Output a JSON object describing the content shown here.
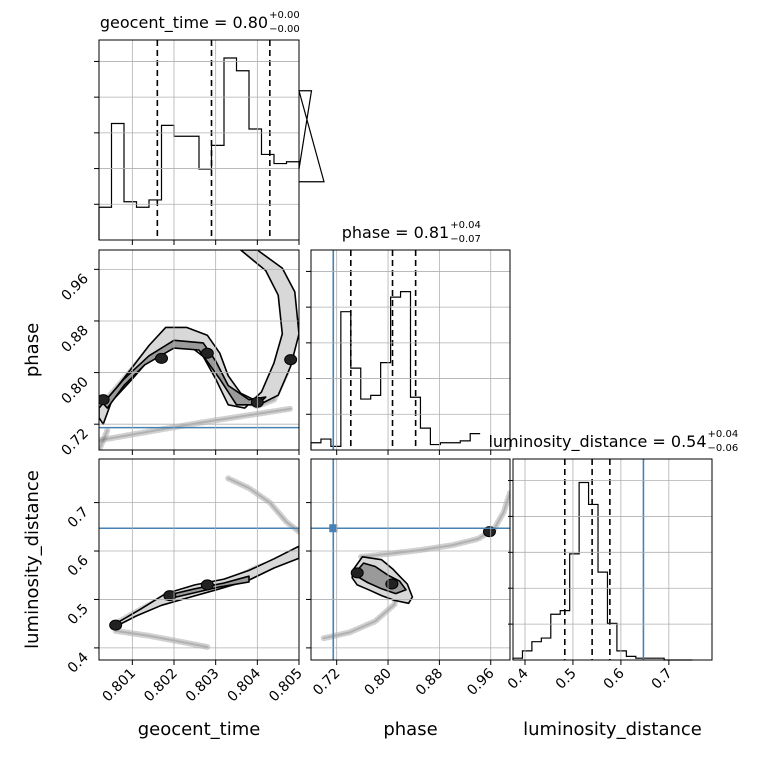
{
  "chart_data": {
    "type": "corner",
    "grid": true,
    "truth_color": "#4682b4",
    "params": [
      {
        "key": "geocent_time",
        "label": "geocent_time",
        "title_main": "geocent_time = 0.80",
        "title_sup": "+0.00",
        "title_sub": "−0.00",
        "range": [
          0.8002,
          0.805
        ],
        "ticks": [
          0.801,
          0.802,
          0.803,
          0.804,
          0.805
        ],
        "tick_labels": [
          "0.801",
          "0.802",
          "0.803",
          "0.804",
          "0.805"
        ],
        "quantiles": [
          0.8016,
          0.8029,
          0.8043
        ],
        "truth": null,
        "hist": {
          "edges_start": 0.8002,
          "bin_width": 0.0003,
          "counts": [
            0.18,
            0.64,
            0.21,
            0.18,
            0.22,
            0.63,
            0.57,
            0.57,
            0.39,
            0.52,
            1.0,
            0.93,
            0.61,
            0.47,
            0.42,
            0.43,
            0.39,
            0.82,
            0.32
          ],
          "ymax": 1.0
        }
      },
      {
        "key": "phase",
        "label": "phase",
        "title_main": "phase = 0.81",
        "title_sup": "+0.04",
        "title_sub": "−0.07",
        "range": [
          0.68,
          0.99
        ],
        "ticks": [
          0.72,
          0.8,
          0.88,
          0.96
        ],
        "tick_labels": [
          "0.72",
          "0.80",
          "0.88",
          "0.96"
        ],
        "quantiles": [
          0.742,
          0.807,
          0.843
        ],
        "truth": 0.7147,
        "hist": {
          "edges_start": 0.68,
          "bin_width": 0.0155,
          "counts": [
            0.04,
            0.06,
            0.02,
            0.76,
            0.45,
            0.28,
            0.3,
            0.48,
            0.84,
            0.87,
            0.29,
            0.12,
            0.03,
            0.04,
            0.04,
            0.05,
            0.09
          ],
          "ymax": 1.0
        }
      },
      {
        "key": "luminosity_distance",
        "label": "luminosity_distance",
        "title_main": "luminosity_distance = 0.54",
        "title_sup": "+0.04",
        "title_sub": "−0.06",
        "range": [
          0.375,
          0.79
        ],
        "ticks": [
          0.4,
          0.5,
          0.6,
          0.7
        ],
        "tick_labels": [
          "0.4",
          "0.5",
          "0.6",
          "0.7"
        ],
        "quantiles": [
          0.483,
          0.54,
          0.577
        ],
        "truth": 0.647,
        "hist": {
          "edges_start": 0.375,
          "bin_width": 0.0197,
          "counts": [
            0.01,
            0.05,
            0.1,
            0.12,
            0.25,
            0.27,
            0.58,
            0.97,
            0.85,
            0.48,
            0.2,
            0.05,
            0.02,
            0.01,
            0.01,
            0.01,
            0.0,
            0.0,
            0.0
          ],
          "ymax": 1.0
        }
      }
    ],
    "pairs": [
      {
        "x": "geocent_time",
        "y": "phase",
        "truth_x": null,
        "truth_y": 0.7147,
        "scatter_paths": [
          [
            [
              0.8002,
              0.745
            ],
            [
              0.8006,
              0.775
            ],
            [
              0.801,
              0.805
            ],
            [
              0.8014,
              0.836
            ],
            [
              0.8018,
              0.855
            ],
            [
              0.8022,
              0.862
            ],
            [
              0.8026,
              0.858
            ],
            [
              0.8029,
              0.835
            ],
            [
              0.8032,
              0.8
            ],
            [
              0.8036,
              0.76
            ],
            [
              0.804,
              0.748
            ],
            [
              0.8044,
              0.758
            ],
            [
              0.8047,
              0.8
            ],
            [
              0.8049,
              0.87
            ],
            [
              0.8047,
              0.928
            ],
            [
              0.8043,
              0.96
            ],
            [
              0.8038,
              0.985
            ]
          ],
          [
            [
              0.8002,
              0.695
            ],
            [
              0.801,
              0.704
            ],
            [
              0.8018,
              0.713
            ],
            [
              0.8026,
              0.722
            ],
            [
              0.8034,
              0.73
            ],
            [
              0.8042,
              0.738
            ],
            [
              0.8048,
              0.744
            ]
          ],
          [
            [
              0.8002,
              0.68
            ],
            [
              0.8003,
              0.695
            ],
            [
              0.8004,
              0.71
            ]
          ]
        ],
        "contour_outer": [
          [
            0.8002,
            0.745
          ],
          [
            0.8006,
            0.775
          ],
          [
            0.801,
            0.808
          ],
          [
            0.8014,
            0.842
          ],
          [
            0.8018,
            0.87
          ],
          [
            0.8023,
            0.87
          ],
          [
            0.8028,
            0.858
          ],
          [
            0.8031,
            0.83
          ],
          [
            0.8033,
            0.795
          ],
          [
            0.8036,
            0.768
          ],
          [
            0.8041,
            0.752
          ],
          [
            0.8045,
            0.765
          ],
          [
            0.8048,
            0.81
          ],
          [
            0.805,
            0.86
          ],
          [
            0.8049,
            0.925
          ],
          [
            0.8046,
            0.962
          ],
          [
            0.804,
            0.99
          ],
          [
            0.8036,
            0.99
          ],
          [
            0.8042,
            0.958
          ],
          [
            0.8045,
            0.92
          ],
          [
            0.8046,
            0.86
          ],
          [
            0.8044,
            0.815
          ],
          [
            0.8041,
            0.77
          ],
          [
            0.8037,
            0.745
          ],
          [
            0.8033,
            0.75
          ],
          [
            0.803,
            0.79
          ],
          [
            0.8027,
            0.825
          ],
          [
            0.8024,
            0.84
          ],
          [
            0.8018,
            0.84
          ],
          [
            0.8014,
            0.82
          ],
          [
            0.801,
            0.79
          ],
          [
            0.8005,
            0.755
          ],
          [
            0.8003,
            0.72
          ],
          [
            0.8002,
            0.73
          ]
        ],
        "contour_inner": [
          [
            0.8003,
            0.752
          ],
          [
            0.8008,
            0.79
          ],
          [
            0.8014,
            0.826
          ],
          [
            0.802,
            0.85
          ],
          [
            0.8027,
            0.846
          ],
          [
            0.803,
            0.818
          ],
          [
            0.8033,
            0.78
          ],
          [
            0.8038,
            0.758
          ],
          [
            0.8042,
            0.762
          ],
          [
            0.804,
            0.75
          ],
          [
            0.8035,
            0.75
          ],
          [
            0.8031,
            0.79
          ],
          [
            0.8026,
            0.835
          ],
          [
            0.802,
            0.838
          ],
          [
            0.8013,
            0.812
          ],
          [
            0.8008,
            0.78
          ],
          [
            0.8004,
            0.745
          ]
        ],
        "blob_points": [
          [
            0.8028,
            0.83
          ],
          [
            0.804,
            0.754
          ],
          [
            0.8017,
            0.822
          ],
          [
            0.8003,
            0.758
          ],
          [
            0.8048,
            0.82
          ]
        ]
      },
      {
        "x": "geocent_time",
        "y": "luminosity_distance",
        "truth_x": null,
        "truth_y": 0.647,
        "scatter_paths": [
          [
            [
              0.8006,
              0.45
            ],
            [
              0.801,
              0.47
            ],
            [
              0.8015,
              0.493
            ],
            [
              0.802,
              0.51
            ],
            [
              0.8025,
              0.52
            ],
            [
              0.803,
              0.532
            ],
            [
              0.8035,
              0.545
            ],
            [
              0.804,
              0.566
            ],
            [
              0.8045,
              0.58
            ],
            [
              0.805,
              0.6
            ]
          ],
          [
            [
              0.8033,
              0.75
            ],
            [
              0.8038,
              0.73
            ],
            [
              0.8043,
              0.7
            ],
            [
              0.8047,
              0.66
            ],
            [
              0.805,
              0.64
            ]
          ],
          [
            [
              0.8006,
              0.435
            ],
            [
              0.8014,
              0.425
            ],
            [
              0.8022,
              0.412
            ],
            [
              0.8028,
              0.402
            ]
          ]
        ],
        "contour_outer": [
          [
            0.8005,
            0.445
          ],
          [
            0.8012,
            0.48
          ],
          [
            0.8018,
            0.512
          ],
          [
            0.8025,
            0.53
          ],
          [
            0.8032,
            0.542
          ],
          [
            0.8038,
            0.56
          ],
          [
            0.8044,
            0.584
          ],
          [
            0.805,
            0.61
          ],
          [
            0.805,
            0.585
          ],
          [
            0.8044,
            0.565
          ],
          [
            0.8038,
            0.54
          ],
          [
            0.8031,
            0.522
          ],
          [
            0.8024,
            0.505
          ],
          [
            0.8017,
            0.488
          ],
          [
            0.8011,
            0.466
          ],
          [
            0.8005,
            0.44
          ]
        ],
        "contour_inner": [
          [
            0.8018,
            0.508
          ],
          [
            0.8025,
            0.522
          ],
          [
            0.8032,
            0.534
          ],
          [
            0.8038,
            0.548
          ],
          [
            0.8038,
            0.536
          ],
          [
            0.8031,
            0.526
          ],
          [
            0.8024,
            0.512
          ],
          [
            0.8018,
            0.5
          ]
        ],
        "blob_points": [
          [
            0.8006,
            0.447
          ],
          [
            0.8019,
            0.508
          ],
          [
            0.8028,
            0.53
          ]
        ]
      },
      {
        "x": "phase",
        "y": "luminosity_distance",
        "truth_x": 0.7147,
        "truth_y": 0.647,
        "scatter_paths": [
          [
            [
              0.758,
              0.588
            ],
            [
              0.8,
              0.594
            ],
            [
              0.85,
              0.602
            ],
            [
              0.9,
              0.612
            ],
            [
              0.94,
              0.625
            ],
            [
              0.965,
              0.645
            ],
            [
              0.98,
              0.68
            ],
            [
              0.99,
              0.72
            ]
          ],
          [
            [
              0.7,
              0.42
            ],
            [
              0.74,
              0.432
            ],
            [
              0.78,
              0.455
            ],
            [
              0.81,
              0.49
            ],
            [
              0.815,
              0.52
            ],
            [
              0.8,
              0.54
            ]
          ]
        ],
        "contour_outer": [
          [
            0.746,
            0.562
          ],
          [
            0.76,
            0.588
          ],
          [
            0.79,
            0.582
          ],
          [
            0.808,
            0.562
          ],
          [
            0.818,
            0.548
          ],
          [
            0.83,
            0.532
          ],
          [
            0.838,
            0.505
          ],
          [
            0.832,
            0.492
          ],
          [
            0.81,
            0.498
          ],
          [
            0.79,
            0.508
          ],
          [
            0.77,
            0.52
          ],
          [
            0.752,
            0.53
          ],
          [
            0.744,
            0.545
          ]
        ],
        "contour_inner": [
          [
            0.752,
            0.56
          ],
          [
            0.762,
            0.575
          ],
          [
            0.78,
            0.568
          ],
          [
            0.8,
            0.55
          ],
          [
            0.818,
            0.538
          ],
          [
            0.828,
            0.52
          ],
          [
            0.812,
            0.512
          ],
          [
            0.79,
            0.522
          ],
          [
            0.768,
            0.535
          ],
          [
            0.754,
            0.546
          ]
        ],
        "blob_points": [
          [
            0.752,
            0.555
          ],
          [
            0.806,
            0.532
          ],
          [
            0.958,
            0.64
          ]
        ]
      }
    ]
  }
}
